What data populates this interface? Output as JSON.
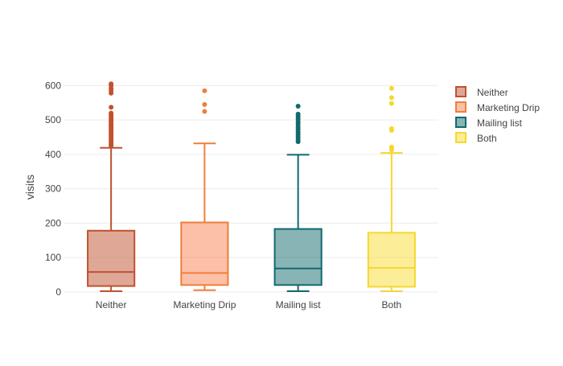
{
  "chart_data": {
    "type": "box",
    "title": "",
    "xlabel": "",
    "ylabel": "visits",
    "ylim": [
      -5,
      615
    ],
    "yticks": [
      0,
      100,
      200,
      300,
      400,
      500,
      600
    ],
    "grid": true,
    "legend_position": "top-right",
    "categories": [
      "Neither",
      "Marketing Drip",
      "Mailing list",
      "Both"
    ],
    "series": [
      {
        "name": "Neither",
        "color": "#c0522e",
        "fill": "rgba(192,82,46,0.5)",
        "min": 2,
        "q1": 17,
        "median": 58,
        "q3": 178,
        "max": 419,
        "outliers": [
          425,
          430,
          435,
          440,
          445,
          450,
          455,
          460,
          465,
          470,
          475,
          480,
          485,
          490,
          495,
          500,
          505,
          510,
          515,
          520,
          537,
          578,
          585,
          592,
          600,
          605
        ]
      },
      {
        "name": "Marketing Drip",
        "color": "#f07f3c",
        "fill": "rgba(250,130,80,0.5)",
        "min": 5,
        "q1": 20,
        "median": 55,
        "q3": 202,
        "max": 432,
        "outliers": [
          525,
          545,
          585
        ]
      },
      {
        "name": "Mailing list",
        "color": "#12696e",
        "fill": "rgba(18,105,110,0.5)",
        "min": 2,
        "q1": 20,
        "median": 68,
        "q3": 183,
        "max": 399,
        "outliers": [
          437,
          443,
          450,
          458,
          465,
          473,
          480,
          488,
          495,
          503,
          510,
          517,
          540
        ]
      },
      {
        "name": "Both",
        "color": "#f5d82f",
        "fill": "rgba(250,220,50,0.5)",
        "min": 2,
        "q1": 15,
        "median": 70,
        "q3": 172,
        "max": 404,
        "outliers": [
          413,
          417,
          421,
          470,
          475,
          548,
          565,
          592
        ]
      }
    ]
  }
}
